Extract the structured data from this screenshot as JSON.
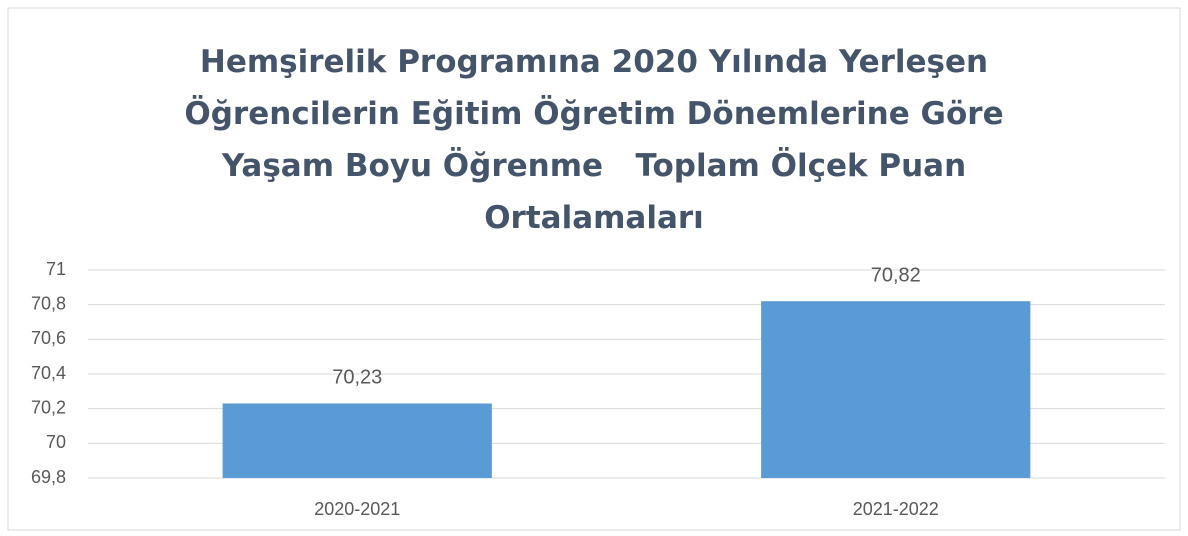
{
  "chart_data": {
    "type": "bar",
    "title": "Hemşirelik Programına 2020 Yılında Yerleşen Öğrencilerin Eğitim Öğretim Dönemlerine Göre Yaşam Boyu Öğrenme   Toplam Ölçek Puan Ortalamaları",
    "categories": [
      "2020-2021",
      "2021-2022"
    ],
    "values": [
      70.23,
      70.82
    ],
    "value_labels": [
      "70,23",
      "70,82"
    ],
    "color": "#5b9bd5",
    "ylim": [
      69.8,
      71
    ],
    "yticks": [
      {
        "value": 69.8,
        "label": "69,8"
      },
      70,
      {
        "value": 70.2,
        "label": "70,2"
      },
      {
        "value": 70.4,
        "label": "70,4"
      },
      {
        "value": 70.6,
        "label": "70,6"
      },
      {
        "value": 70.8,
        "label": "70,8"
      },
      71
    ],
    "grid": true
  }
}
